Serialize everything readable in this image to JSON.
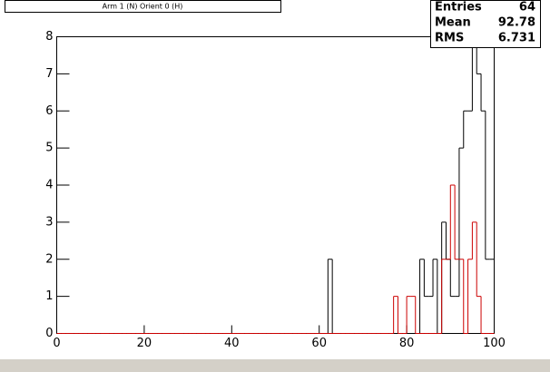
{
  "chart_data": {
    "type": "histogram",
    "title": "Arm 1 (N) Orient 0 (H)",
    "bins": [
      0,
      1,
      2,
      3,
      4,
      5,
      6,
      7,
      8,
      9,
      10,
      11,
      12,
      13,
      14,
      15,
      16,
      17,
      18,
      19,
      20,
      21,
      22,
      23,
      24,
      25,
      26,
      27,
      28,
      29,
      30,
      31,
      32,
      33,
      34,
      35,
      36,
      37,
      38,
      39,
      40,
      41,
      42,
      43,
      44,
      45,
      46,
      47,
      48,
      49,
      50,
      51,
      52,
      53,
      54,
      55,
      56,
      57,
      58,
      59,
      60,
      61,
      62,
      63,
      64,
      65,
      66,
      67,
      68,
      69,
      70,
      71,
      72,
      73,
      74,
      75,
      76,
      77,
      78,
      79,
      80,
      81,
      82,
      83,
      84,
      85,
      86,
      87,
      88,
      89,
      90,
      91,
      92,
      93,
      94,
      95,
      96,
      97,
      98,
      99,
      100
    ],
    "series": [
      {
        "color": "#000000",
        "values": [
          0,
          0,
          0,
          0,
          0,
          0,
          0,
          0,
          0,
          0,
          0,
          0,
          0,
          0,
          0,
          0,
          0,
          0,
          0,
          0,
          0,
          0,
          0,
          0,
          0,
          0,
          0,
          0,
          0,
          0,
          0,
          0,
          0,
          0,
          0,
          0,
          0,
          0,
          0,
          0,
          0,
          0,
          0,
          0,
          0,
          0,
          0,
          0,
          0,
          0,
          0,
          0,
          0,
          0,
          0,
          0,
          0,
          0,
          0,
          0,
          0,
          0,
          2,
          0,
          0,
          0,
          0,
          0,
          0,
          0,
          0,
          0,
          0,
          0,
          0,
          0,
          0,
          0,
          0,
          0,
          0,
          0,
          0,
          2,
          1,
          1,
          2,
          0,
          3,
          2,
          1,
          1,
          5,
          6,
          6,
          8,
          7,
          6,
          2,
          2
        ]
      },
      {
        "color": "#cc0000",
        "values": [
          0,
          0,
          0,
          0,
          0,
          0,
          0,
          0,
          0,
          0,
          0,
          0,
          0,
          0,
          0,
          0,
          0,
          0,
          0,
          0,
          0,
          0,
          0,
          0,
          0,
          0,
          0,
          0,
          0,
          0,
          0,
          0,
          0,
          0,
          0,
          0,
          0,
          0,
          0,
          0,
          0,
          0,
          0,
          0,
          0,
          0,
          0,
          0,
          0,
          0,
          0,
          0,
          0,
          0,
          0,
          0,
          0,
          0,
          0,
          0,
          0,
          0,
          0,
          0,
          0,
          0,
          0,
          0,
          0,
          0,
          0,
          0,
          0,
          0,
          0,
          0,
          0,
          1,
          0,
          0,
          1,
          1,
          0,
          0,
          0,
          0,
          0,
          0,
          2,
          2,
          4,
          2,
          2,
          0,
          2,
          3,
          1,
          0,
          0,
          0
        ]
      }
    ],
    "xlim": [
      0,
      100
    ],
    "xticks": [
      0,
      20,
      40,
      60,
      80,
      100
    ],
    "ylim": [
      0,
      8
    ],
    "yticks": [
      0,
      1,
      2,
      3,
      4,
      5,
      6,
      7,
      8
    ],
    "stats": [
      {
        "label": "Entries",
        "value": 64
      },
      {
        "label": "Mean",
        "value": 92.78
      },
      {
        "label": "RMS",
        "value": 6.731
      }
    ]
  }
}
